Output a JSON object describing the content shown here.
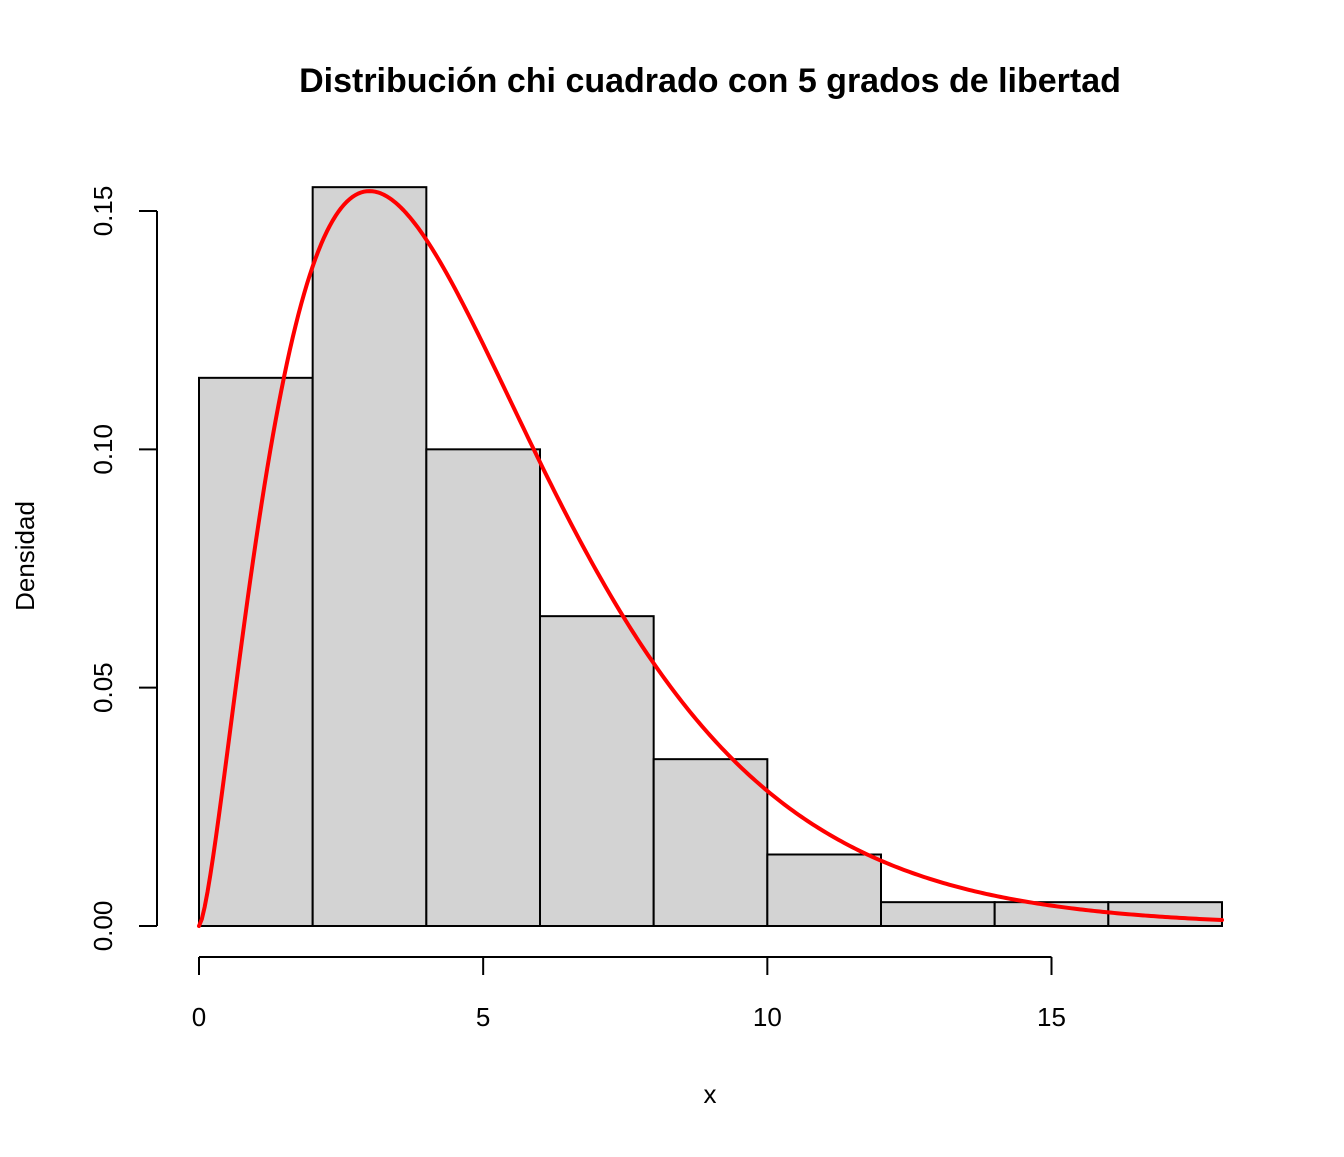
{
  "chart_data": {
    "type": "histogram",
    "title": "Distribución chi cuadrado con 5 grados de libertad",
    "xlabel": "x",
    "ylabel": "Densidad",
    "xlim": [
      0,
      18
    ],
    "ylim": [
      0,
      0.155
    ],
    "x_ticks": [
      0,
      5,
      10,
      15
    ],
    "x_tick_labels": [
      "0",
      "5",
      "10",
      "15"
    ],
    "y_ticks": [
      0.0,
      0.05,
      0.1,
      0.15
    ],
    "y_tick_labels": [
      "0.00",
      "0.05",
      "0.10",
      "0.15"
    ],
    "bins": [
      {
        "from": 0,
        "to": 2,
        "density": 0.115
      },
      {
        "from": 2,
        "to": 4,
        "density": 0.155
      },
      {
        "from": 4,
        "to": 6,
        "density": 0.1
      },
      {
        "from": 6,
        "to": 8,
        "density": 0.065
      },
      {
        "from": 8,
        "to": 10,
        "density": 0.035
      },
      {
        "from": 10,
        "to": 12,
        "density": 0.015
      },
      {
        "from": 12,
        "to": 14,
        "density": 0.005
      },
      {
        "from": 14,
        "to": 16,
        "density": 0.005
      },
      {
        "from": 16,
        "to": 18,
        "density": 0.005
      }
    ],
    "bar_fill": "#d3d3d3",
    "bar_stroke": "#000000",
    "curve": {
      "type": "chi-squared density",
      "df": 5,
      "color": "#ff0000"
    },
    "grid": false,
    "legend": "none"
  }
}
